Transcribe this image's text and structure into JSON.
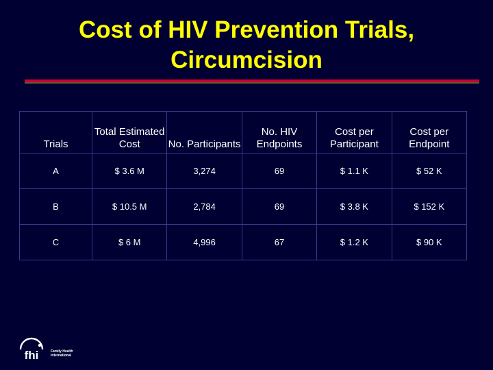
{
  "slide": {
    "title_line1": "Cost of HIV Prevention Trials,",
    "title_line2": "Circumcision"
  },
  "table": {
    "headers": [
      "Trials",
      "Total Estimated Cost",
      "No. Participants",
      "No. HIV Endpoints",
      "Cost per Participant",
      "Cost per Endpoint"
    ],
    "rows": [
      [
        "A",
        "$ 3.6 M",
        "3,274",
        "69",
        "$ 1.1 K",
        "$ 52 K"
      ],
      [
        "B",
        "$ 10.5 M",
        "2,784",
        "69",
        "$ 3.8 K",
        "$ 152 K"
      ],
      [
        "C",
        "$ 6 M",
        "4,996",
        "67",
        "$ 1.2 K",
        "$ 90 K"
      ]
    ]
  },
  "logo": {
    "mark": "fhi",
    "line1": "Family Health",
    "line2": "International"
  },
  "colors": {
    "background": "#000033",
    "title": "#ffff00",
    "rule": "#cc0033",
    "grid": "#3a3a8c"
  }
}
